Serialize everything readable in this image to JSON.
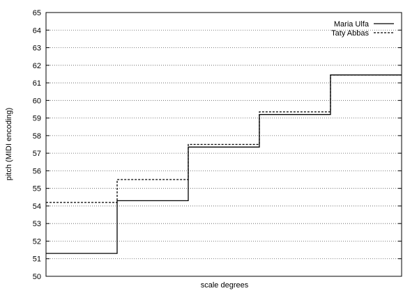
{
  "chart_data": {
    "type": "line",
    "step": true,
    "title": "",
    "xlabel": "scale degrees",
    "ylabel": "pitch (MIDI encoding)",
    "ylim": [
      50,
      65
    ],
    "yticks": [
      "50",
      "51",
      "52",
      "53",
      "54",
      "55",
      "56",
      "57",
      "58",
      "59",
      "60",
      "61",
      "62",
      "63",
      "64",
      "65"
    ],
    "xlim": [
      0,
      5
    ],
    "grid": "horizontal dotted",
    "legend_position": "top-right",
    "series": [
      {
        "name": "Maria Ulfa",
        "style": "solid",
        "color": "#000000",
        "x": [
          0,
          1,
          2,
          3,
          4
        ],
        "values": [
          51.3,
          54.3,
          57.35,
          59.2,
          61.45
        ]
      },
      {
        "name": "Taty Abbas",
        "style": "dashed",
        "color": "#000000",
        "x": [
          0,
          1,
          2,
          3,
          4
        ],
        "values": [
          54.2,
          55.5,
          57.5,
          59.35,
          61.45
        ]
      }
    ]
  }
}
